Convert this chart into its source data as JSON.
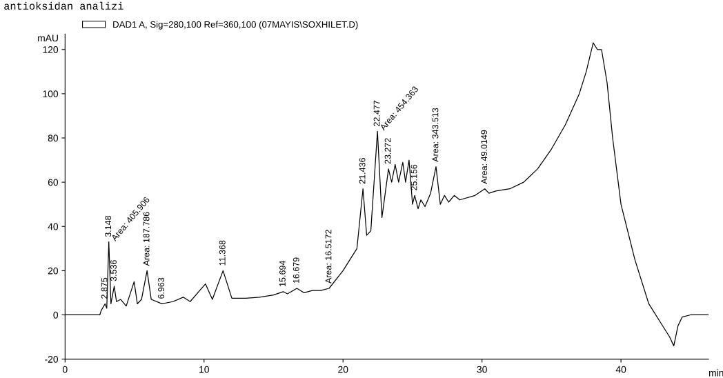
{
  "chart_data": {
    "type": "line",
    "title": "antioksidan analizi",
    "ylabel": "mAU",
    "xlabel": "min",
    "xlim": [
      0,
      46.3
    ],
    "ylim": [
      -20,
      127
    ],
    "xticks": [
      0,
      10,
      20,
      30,
      40
    ],
    "yticks": [
      -20,
      0,
      20,
      40,
      60,
      80,
      100,
      120
    ],
    "legend": "top left",
    "grid": false,
    "series": [
      {
        "name": "DAD1 A, Sig=280,100 Ref=360,100 (07MAYIS\\SOXHILET.D)",
        "color": "#000000",
        "x": [
          0,
          2.5,
          2.6,
          2.875,
          3.0,
          3.148,
          3.3,
          3.536,
          3.7,
          4.0,
          4.4,
          4.969,
          5.2,
          5.5,
          5.9,
          6.2,
          6.963,
          7.769,
          8.5,
          9.0,
          10.1,
          10.6,
          11.368,
          12.0,
          13,
          14,
          15,
          15.694,
          16.0,
          16.679,
          17.2,
          17.8,
          18.4,
          19,
          20,
          21,
          21.436,
          21.7,
          22.0,
          22.477,
          22.8,
          23.272,
          23.5,
          23.75,
          24.0,
          24.3,
          24.5,
          24.75,
          25.0,
          25.156,
          25.4,
          25.6,
          25.9,
          26.3,
          26.69,
          27.0,
          27.3,
          27.6,
          28.0,
          28.4,
          29.5,
          30.2,
          30.5,
          31,
          32,
          33,
          34,
          35,
          36,
          37,
          37.5,
          38.0,
          38.3,
          38.6,
          39.0,
          39.4,
          40,
          41,
          42,
          43,
          43.5,
          43.8,
          44.1,
          44.4,
          45,
          46.3
        ],
        "values": [
          0,
          0,
          2,
          5,
          3,
          33,
          5,
          13,
          6,
          7,
          4,
          15,
          5,
          7,
          20,
          7,
          5,
          6,
          8,
          6,
          14,
          7,
          20,
          7.5,
          7.5,
          8,
          9,
          10.5,
          9.5,
          12,
          10,
          11,
          11,
          12,
          20,
          30,
          57,
          36,
          38,
          83,
          44,
          66,
          60,
          68,
          60,
          69,
          60,
          70,
          50,
          54,
          48,
          52,
          49,
          55,
          67,
          50,
          54,
          51,
          54,
          52,
          54,
          57,
          55,
          56,
          57,
          60,
          66,
          75,
          86,
          100,
          110,
          123,
          120,
          120,
          105,
          80,
          50,
          25,
          5,
          -5,
          -10,
          -14,
          -5,
          -1,
          0,
          0
        ]
      }
    ],
    "annotations": [
      {
        "text": "2.875",
        "x": 2.875,
        "y": 5
      },
      {
        "text": "3.148",
        "x": 3.148,
        "y": 33
      },
      {
        "text": "Area: 405.906",
        "x": 3.148,
        "y": 33
      },
      {
        "text": "3.536",
        "x": 3.536,
        "y": 13
      },
      {
        "text": "Area: 187.786",
        "x": 5.9,
        "y": 20
      },
      {
        "text": "6.963",
        "x": 6.963,
        "y": 5
      },
      {
        "text": "11.368",
        "x": 11.368,
        "y": 20
      },
      {
        "text": "15.694",
        "x": 15.694,
        "y": 10.5
      },
      {
        "text": "16.679",
        "x": 16.679,
        "y": 12
      },
      {
        "text": "Area: 16.5172",
        "x": 19.0,
        "y": 12
      },
      {
        "text": "21.436",
        "x": 21.436,
        "y": 57
      },
      {
        "text": "22.477",
        "x": 22.477,
        "y": 83
      },
      {
        "text": "Area: 454.363",
        "x": 22.477,
        "y": 83
      },
      {
        "text": "23.272",
        "x": 23.272,
        "y": 66
      },
      {
        "text": "25.156",
        "x": 25.156,
        "y": 54
      },
      {
        "text": "Area: 343.513",
        "x": 26.69,
        "y": 67
      },
      {
        "text": "Area: 49.0149",
        "x": 30.2,
        "y": 57
      }
    ]
  }
}
